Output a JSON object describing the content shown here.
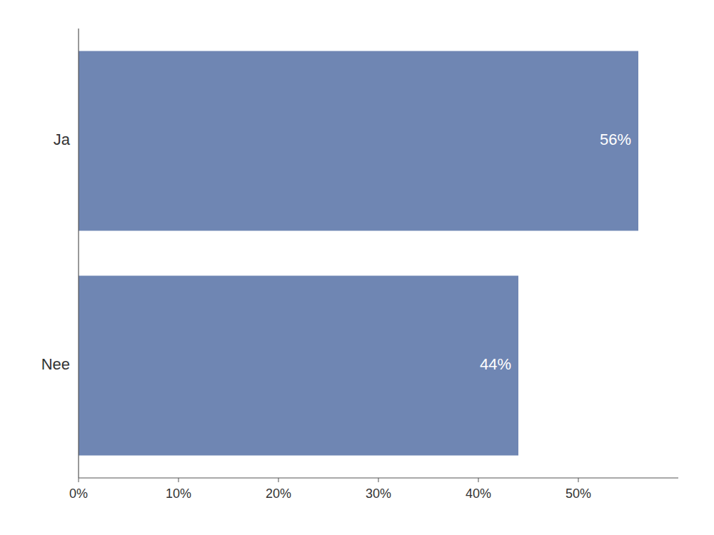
{
  "chart_data": {
    "type": "bar",
    "orientation": "horizontal",
    "categories": [
      "Nee",
      "Ja"
    ],
    "values": [
      0.44,
      0.56
    ],
    "value_labels": [
      "44%",
      "56%"
    ],
    "data_labels": true,
    "color": "#6F86B3",
    "xlim": [
      0,
      0.6
    ],
    "xticks": [
      {
        "value": 0.0,
        "label": "0%"
      },
      {
        "value": 0.1,
        "label": "10%"
      },
      {
        "value": 0.2,
        "label": "20%"
      },
      {
        "value": 0.3,
        "label": "30%"
      },
      {
        "value": 0.4,
        "label": "40%"
      },
      {
        "value": 0.5,
        "label": "50%"
      }
    ],
    "grid": false
  }
}
